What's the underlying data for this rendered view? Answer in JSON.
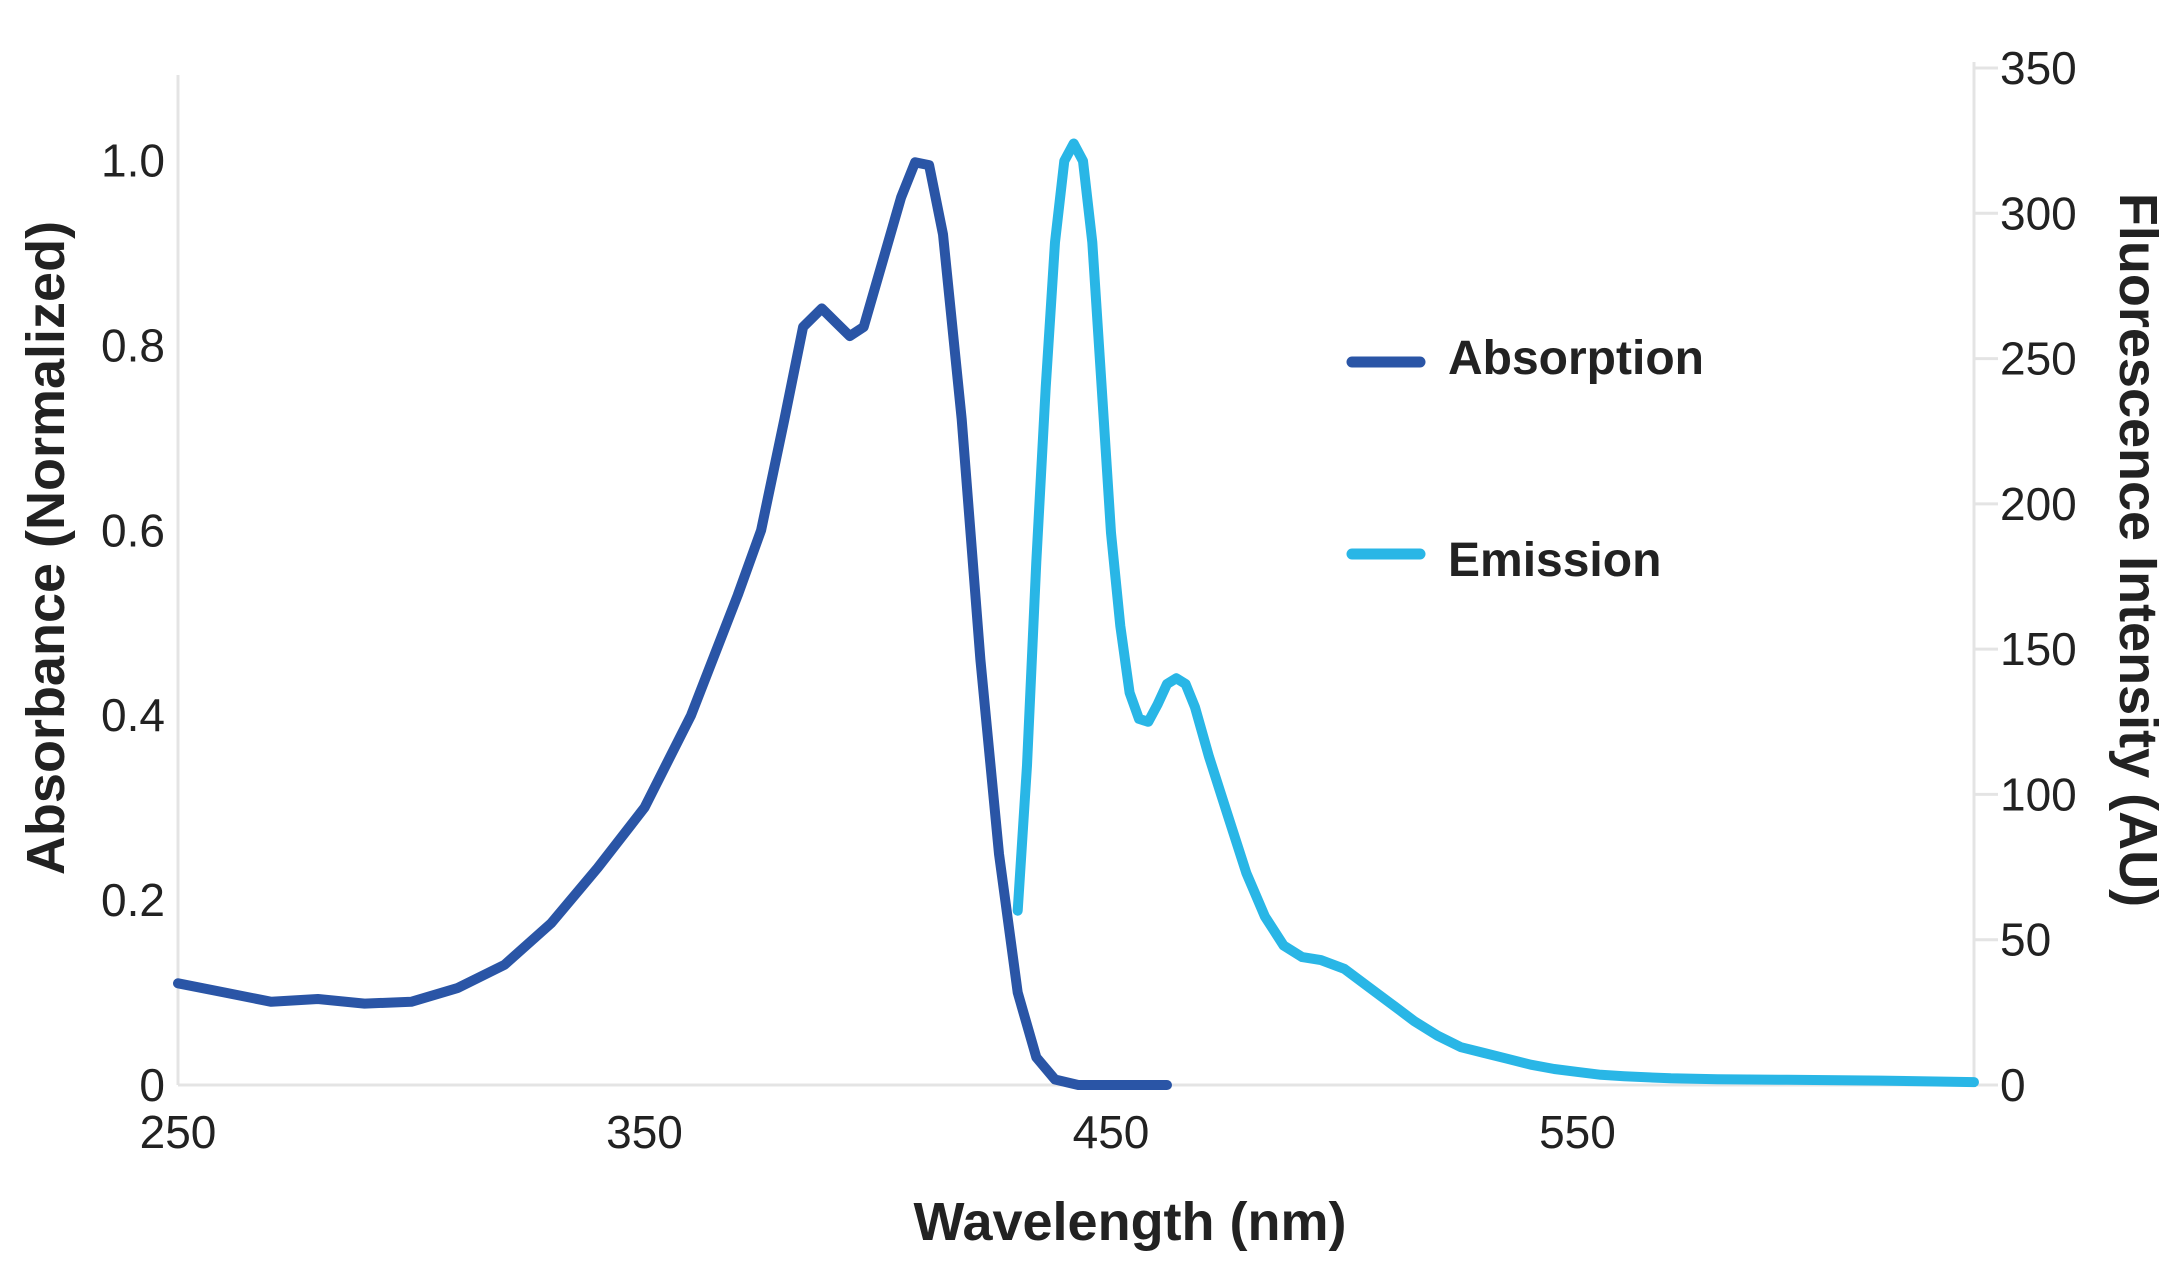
{
  "chart_data": {
    "type": "line",
    "xlabel": "Wavelength (nm)",
    "ylabel_left": "Absorbance (Normalized)",
    "ylabel_right": "Fluorescence Intensity (AU)",
    "xlim": [
      250,
      635
    ],
    "ylim_left": [
      0,
      1.1
    ],
    "ylim_right": [
      0,
      350
    ],
    "x_ticks": [
      "250",
      "350",
      "450",
      "550"
    ],
    "y_left_ticks": [
      "0",
      "0.2",
      "0.4",
      "0.6",
      "0.8",
      "1.0"
    ],
    "y_right_ticks": [
      "0",
      "50",
      "100",
      "150",
      "200",
      "250",
      "300",
      "350"
    ],
    "legend_position": "right",
    "series": [
      {
        "name": "Absorption",
        "axis": "left",
        "color": "#2a55a6",
        "points": [
          [
            250,
            0.11
          ],
          [
            260,
            0.1
          ],
          [
            270,
            0.09
          ],
          [
            280,
            0.093
          ],
          [
            290,
            0.088
          ],
          [
            300,
            0.09
          ],
          [
            310,
            0.105
          ],
          [
            320,
            0.13
          ],
          [
            330,
            0.175
          ],
          [
            340,
            0.235
          ],
          [
            350,
            0.3
          ],
          [
            360,
            0.4
          ],
          [
            370,
            0.53
          ],
          [
            375,
            0.6
          ],
          [
            380,
            0.72
          ],
          [
            384,
            0.82
          ],
          [
            388,
            0.84
          ],
          [
            391,
            0.825
          ],
          [
            394,
            0.81
          ],
          [
            397,
            0.82
          ],
          [
            401,
            0.89
          ],
          [
            405,
            0.96
          ],
          [
            408,
            0.998
          ],
          [
            411,
            0.995
          ],
          [
            414,
            0.92
          ],
          [
            418,
            0.72
          ],
          [
            422,
            0.46
          ],
          [
            426,
            0.25
          ],
          [
            430,
            0.1
          ],
          [
            434,
            0.03
          ],
          [
            438,
            0.006
          ],
          [
            443,
            0
          ],
          [
            462,
            0
          ]
        ]
      },
      {
        "name": "Emission",
        "axis": "right",
        "color": "#29b6e6",
        "points": [
          [
            430,
            60
          ],
          [
            432,
            110
          ],
          [
            434,
            180
          ],
          [
            436,
            240
          ],
          [
            438,
            290
          ],
          [
            440,
            318
          ],
          [
            442,
            324
          ],
          [
            444,
            318
          ],
          [
            446,
            290
          ],
          [
            448,
            240
          ],
          [
            450,
            190
          ],
          [
            452,
            158
          ],
          [
            454,
            135
          ],
          [
            456,
            126
          ],
          [
            458,
            125
          ],
          [
            460,
            131
          ],
          [
            462,
            138
          ],
          [
            464,
            140
          ],
          [
            466,
            138
          ],
          [
            468,
            130
          ],
          [
            471,
            113
          ],
          [
            475,
            93
          ],
          [
            479,
            73
          ],
          [
            483,
            58
          ],
          [
            487,
            48
          ],
          [
            491,
            44
          ],
          [
            495,
            43
          ],
          [
            500,
            40
          ],
          [
            505,
            34
          ],
          [
            510,
            28
          ],
          [
            515,
            22
          ],
          [
            520,
            17
          ],
          [
            525,
            13
          ],
          [
            530,
            11
          ],
          [
            535,
            9
          ],
          [
            540,
            7
          ],
          [
            545,
            5.5
          ],
          [
            550,
            4.5
          ],
          [
            555,
            3.5
          ],
          [
            560,
            3
          ],
          [
            570,
            2.3
          ],
          [
            580,
            2
          ],
          [
            595,
            1.8
          ],
          [
            615,
            1.5
          ],
          [
            635,
            1
          ]
        ]
      }
    ]
  }
}
